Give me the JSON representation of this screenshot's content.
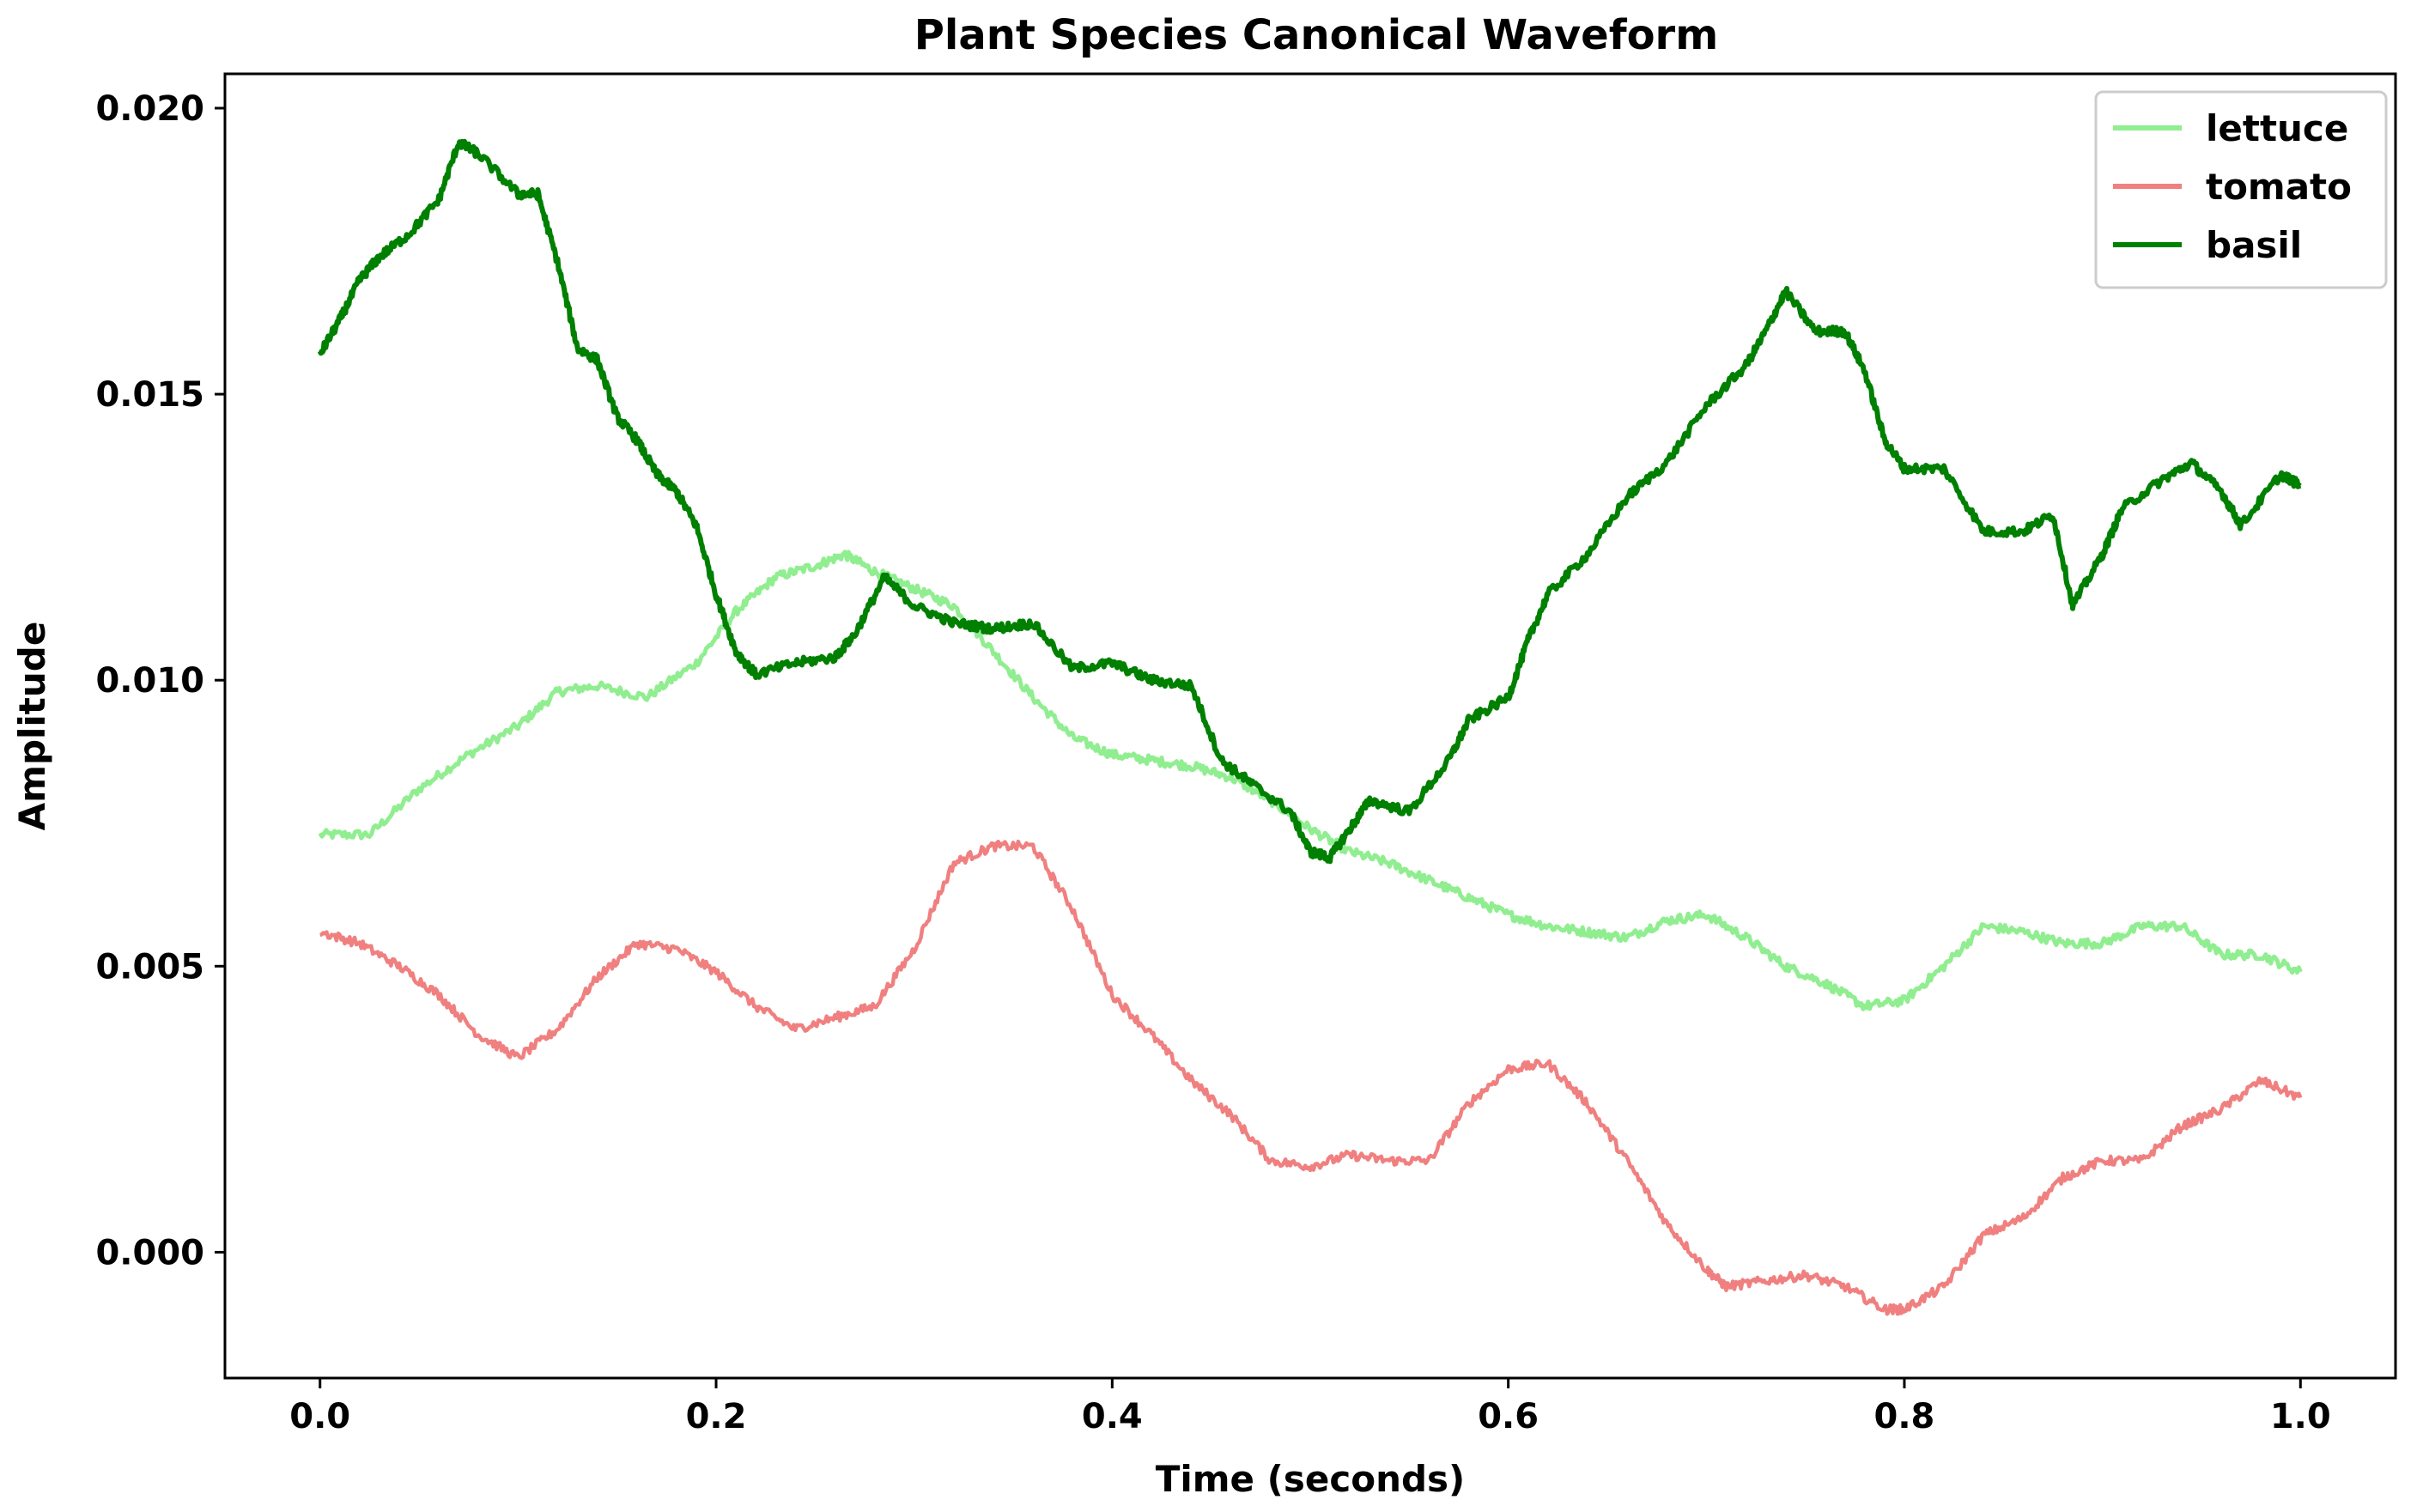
{
  "chart_data": {
    "type": "line",
    "title": "Plant Species Canonical Waveform",
    "xlabel": "Time (seconds)",
    "ylabel": "Amplitude",
    "xlim": [
      -0.048,
      1.048
    ],
    "ylim": [
      -0.0022,
      0.0206
    ],
    "xticks": [
      0.0,
      0.2,
      0.4,
      0.6,
      0.8,
      1.0
    ],
    "xtick_labels": [
      "0.0",
      "0.2",
      "0.4",
      "0.6",
      "0.8",
      "1.0"
    ],
    "yticks": [
      0.0,
      0.005,
      0.01,
      0.015,
      0.02
    ],
    "ytick_labels": [
      "0.000",
      "0.005",
      "0.010",
      "0.015",
      "0.020"
    ],
    "grid": false,
    "legend_position": "top-right",
    "series": [
      {
        "name": "lettuce",
        "color": "#90ee90",
        "x": [
          0.0,
          0.025,
          0.05,
          0.075,
          0.1,
          0.12,
          0.14,
          0.165,
          0.19,
          0.21,
          0.23,
          0.25,
          0.265,
          0.28,
          0.3,
          0.32,
          0.34,
          0.36,
          0.38,
          0.4,
          0.42,
          0.44,
          0.46,
          0.48,
          0.5,
          0.52,
          0.54,
          0.56,
          0.58,
          0.6,
          0.62,
          0.64,
          0.66,
          0.68,
          0.7,
          0.72,
          0.74,
          0.76,
          0.78,
          0.8,
          0.82,
          0.84,
          0.86,
          0.88,
          0.9,
          0.92,
          0.94,
          0.96,
          0.98,
          1.0
        ],
        "y": [
          0.0073,
          0.0073,
          0.0081,
          0.0087,
          0.0092,
          0.0098,
          0.0099,
          0.0097,
          0.0103,
          0.0112,
          0.0118,
          0.012,
          0.0122,
          0.0119,
          0.0116,
          0.0113,
          0.0105,
          0.0097,
          0.009,
          0.0087,
          0.0086,
          0.0085,
          0.0083,
          0.0079,
          0.0074,
          0.007,
          0.0068,
          0.0065,
          0.0062,
          0.0059,
          0.0057,
          0.0056,
          0.0055,
          0.0058,
          0.0059,
          0.0055,
          0.005,
          0.0047,
          0.0043,
          0.0044,
          0.005,
          0.0057,
          0.0056,
          0.0054,
          0.0054,
          0.0057,
          0.0057,
          0.0052,
          0.0052,
          0.0049
        ]
      },
      {
        "name": "tomato",
        "color": "#f08080",
        "x": [
          0.0,
          0.02,
          0.04,
          0.06,
          0.08,
          0.1,
          0.12,
          0.14,
          0.16,
          0.18,
          0.2,
          0.22,
          0.24,
          0.26,
          0.28,
          0.3,
          0.32,
          0.34,
          0.36,
          0.38,
          0.4,
          0.42,
          0.44,
          0.46,
          0.48,
          0.5,
          0.52,
          0.54,
          0.56,
          0.58,
          0.6,
          0.62,
          0.64,
          0.66,
          0.68,
          0.7,
          0.71,
          0.73,
          0.75,
          0.77,
          0.79,
          0.8,
          0.82,
          0.84,
          0.86,
          0.88,
          0.9,
          0.92,
          0.94,
          0.96,
          0.98,
          1.0
        ],
        "y": [
          0.0056,
          0.0054,
          0.005,
          0.0045,
          0.0038,
          0.0034,
          0.0039,
          0.0048,
          0.0054,
          0.0053,
          0.0049,
          0.0043,
          0.0039,
          0.0041,
          0.0043,
          0.0053,
          0.0068,
          0.0071,
          0.0071,
          0.006,
          0.0045,
          0.0038,
          0.003,
          0.0024,
          0.0016,
          0.0015,
          0.0017,
          0.0016,
          0.0016,
          0.0026,
          0.0032,
          0.0033,
          0.0026,
          0.0016,
          0.0005,
          -0.0003,
          -0.0006,
          -0.0005,
          -0.0004,
          -0.0006,
          -0.001,
          -0.001,
          -0.0006,
          0.0003,
          0.0006,
          0.0013,
          0.0016,
          0.0016,
          0.0022,
          0.0025,
          0.003,
          0.0027
        ]
      },
      {
        "name": "basil",
        "color": "#008000",
        "x": [
          0.0,
          0.01,
          0.02,
          0.03,
          0.045,
          0.06,
          0.07,
          0.08,
          0.1,
          0.11,
          0.12,
          0.13,
          0.14,
          0.15,
          0.16,
          0.17,
          0.18,
          0.19,
          0.2,
          0.21,
          0.22,
          0.24,
          0.26,
          0.27,
          0.285,
          0.3,
          0.32,
          0.34,
          0.36,
          0.38,
          0.4,
          0.42,
          0.44,
          0.455,
          0.47,
          0.49,
          0.5,
          0.51,
          0.52,
          0.53,
          0.55,
          0.57,
          0.58,
          0.6,
          0.61,
          0.62,
          0.64,
          0.66,
          0.68,
          0.7,
          0.72,
          0.73,
          0.74,
          0.755,
          0.77,
          0.78,
          0.79,
          0.8,
          0.82,
          0.84,
          0.86,
          0.875,
          0.885,
          0.9,
          0.91,
          0.93,
          0.945,
          0.96,
          0.97,
          0.99,
          1.0
        ],
        "y": [
          0.0157,
          0.0163,
          0.017,
          0.0174,
          0.0178,
          0.0184,
          0.0194,
          0.0192,
          0.0185,
          0.0185,
          0.0173,
          0.0158,
          0.0156,
          0.0146,
          0.0142,
          0.0136,
          0.0133,
          0.0127,
          0.0115,
          0.0105,
          0.0101,
          0.0103,
          0.0104,
          0.0108,
          0.0118,
          0.0113,
          0.011,
          0.0109,
          0.011,
          0.0102,
          0.0103,
          0.01,
          0.0099,
          0.0086,
          0.0082,
          0.0077,
          0.007,
          0.0069,
          0.0074,
          0.0079,
          0.0077,
          0.0086,
          0.0093,
          0.0097,
          0.0107,
          0.0115,
          0.0122,
          0.0132,
          0.0138,
          0.0148,
          0.0155,
          0.0161,
          0.0168,
          0.0161,
          0.0161,
          0.0154,
          0.0142,
          0.0137,
          0.0137,
          0.0126,
          0.0126,
          0.0129,
          0.0113,
          0.0122,
          0.013,
          0.0135,
          0.0138,
          0.0133,
          0.0127,
          0.0136,
          0.0134
        ]
      }
    ]
  }
}
